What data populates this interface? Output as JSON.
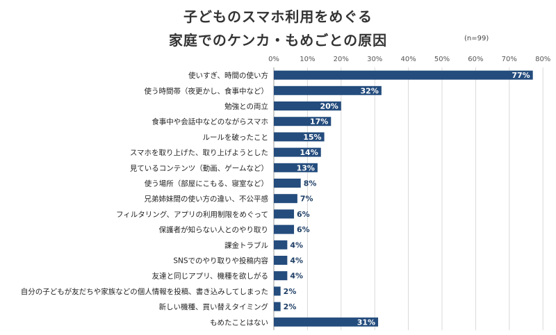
{
  "chart_data": {
    "type": "bar",
    "orientation": "horizontal",
    "title_lines": [
      "子どものスマホ利用をめぐる",
      "家庭でのケンカ・もめごとの原因"
    ],
    "note": "(n=99)",
    "xlim": [
      0,
      80
    ],
    "x_ticks": [
      "0%",
      "10%",
      "20%",
      "30%",
      "40%",
      "50%",
      "60%",
      "70%",
      "80%"
    ],
    "grid": true,
    "bar_color": "#244C7D",
    "categories": [
      "使いすぎ、時間の使い方",
      "使う時間帯（夜更かし、食事中など）",
      "勉強との両立",
      "食事中や会話中などのながらスマホ",
      "ルールを破ったこと",
      "スマホを取り上げた、取り上げようとした",
      "見ているコンテンツ（動画、ゲームなど）",
      "使う場所（部屋にこもる、寝室など）",
      "兄弟姉妹間の使い方の違い、不公平感",
      "フィルタリング、アプリの利用制限をめぐって",
      "保護者が知らない人とのやり取り",
      "課金トラブル",
      "SNSでのやり取りや投稿内容",
      "友達と同じアプリ、機種を欲しがる",
      "自分の子どもが友だちや家族などの個人情報を投稿、書き込みしてしまった",
      "新しい機種、買い替えタイミング",
      "もめたことはない"
    ],
    "values": [
      77,
      32,
      20,
      17,
      15,
      14,
      13,
      8,
      7,
      6,
      6,
      4,
      4,
      4,
      2,
      2,
      31
    ],
    "value_labels": [
      "77%",
      "32%",
      "20%",
      "17%",
      "15%",
      "14%",
      "13%",
      "8%",
      "7%",
      "6%",
      "6%",
      "4%",
      "4%",
      "4%",
      "2%",
      "2%",
      "31%"
    ]
  }
}
